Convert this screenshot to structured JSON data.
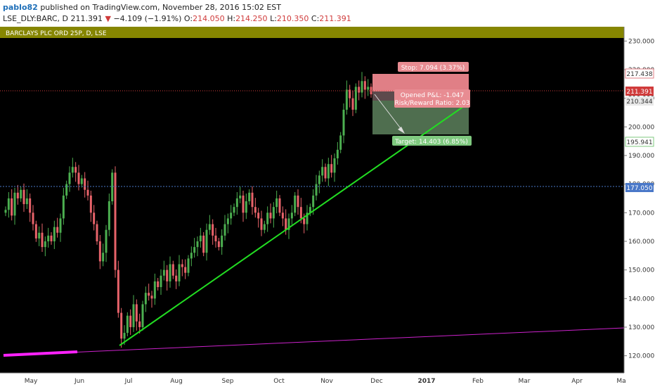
{
  "header": {
    "username": "pablo82",
    "published_text": "published on TradingView.com, November 28, 2016 15:02 EST",
    "symbol": "LSE_DLY:BARC, D",
    "last": "211.391",
    "change_arrow": "▼",
    "change": "−4.109 (−1.91%)",
    "open_label": "O:",
    "open": "214.050",
    "high_label": "H:",
    "high": "214.250",
    "low_label": "L:",
    "low": "210.350",
    "close_label": "C:",
    "close": "211.391"
  },
  "chart_title": "BARCLAYS PLC ORD 25P, D, LSE",
  "colors": {
    "up": "#4caf50",
    "down": "#e8636a",
    "trendline": "#22dd22",
    "long_trendline": "#cc22cc",
    "title_band": "#868600",
    "stop_zone": "#e07f86",
    "target_zone": "#4f6e4f"
  },
  "position": {
    "stop_label": "Stop: 7.094 (3.37%)",
    "target_label": "Target: 14.403 (6.85%)",
    "pnl_label": "Opened P&L: -1.047",
    "rr_label": "Risk/Reward Ratio: 2.03"
  },
  "price_tags": {
    "stop": "217.438",
    "current": "211.391",
    "entry": "210.344",
    "target": "195.941",
    "hline": "177.050"
  },
  "chart_data": {
    "type": "candlestick",
    "y_ticks": [
      "230.000",
      "220.000",
      "210.000",
      "200.000",
      "190.000",
      "180.000",
      "170.000",
      "160.000",
      "150.000",
      "140.000",
      "130.000",
      "120.000"
    ],
    "x_ticks": [
      "May",
      "Jun",
      "Jul",
      "Aug",
      "Sep",
      "Oct",
      "Nov",
      "Dec",
      "2017",
      "Feb",
      "Mar",
      "Apr",
      "Ma"
    ],
    "ylim": [
      114,
      235
    ],
    "levels": {
      "current_price": 211.391,
      "horizontal_line": 177.05,
      "stop": 217.438,
      "entry": 210.344,
      "target": 195.941
    },
    "trendline": {
      "from": [
        "Jun 24",
        121
      ],
      "to": [
        "Dec 20",
        206
      ]
    },
    "long_trendline": {
      "from": [
        "Apr 2016",
        117
      ],
      "to": [
        "May 2017",
        127
      ]
    },
    "closes": [
      171,
      175,
      169,
      177,
      175,
      178,
      173,
      175,
      170,
      166,
      161,
      163,
      158,
      160,
      162,
      160,
      165,
      163,
      168,
      176,
      180,
      184,
      186,
      184,
      180,
      182,
      178,
      176,
      170,
      166,
      160,
      153,
      156,
      164,
      174,
      184,
      150,
      135,
      126,
      128,
      134,
      130,
      138,
      132,
      130,
      138,
      142,
      141,
      140,
      146,
      144,
      148,
      150,
      146,
      152,
      148,
      146,
      152,
      151,
      149,
      154,
      156,
      158,
      160,
      162,
      156,
      164,
      166,
      162,
      160,
      158,
      162,
      166,
      168,
      170,
      172,
      175,
      176,
      170,
      174,
      177,
      172,
      170,
      168,
      164,
      166,
      170,
      168,
      172,
      175,
      170,
      168,
      164,
      168,
      170,
      176,
      172,
      168,
      166,
      170,
      172,
      176,
      180,
      183,
      186,
      182,
      187,
      184,
      189,
      192,
      197,
      206,
      213,
      210,
      206,
      214,
      212,
      216,
      213,
      214,
      211.391
    ],
    "volumes": []
  }
}
